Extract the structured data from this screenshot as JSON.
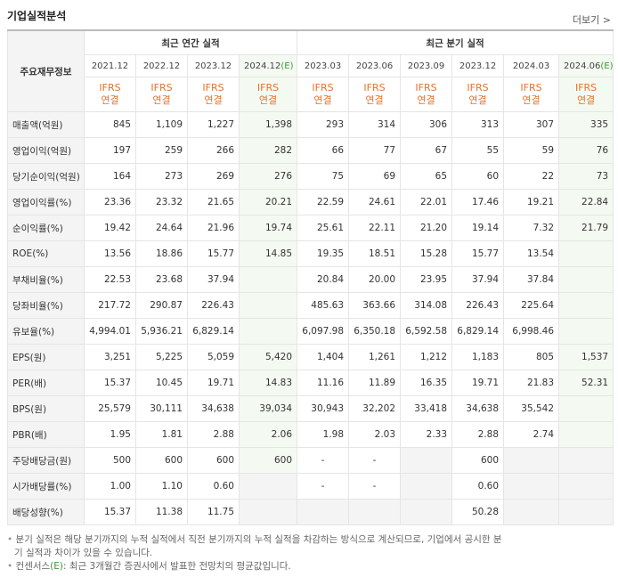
{
  "header": {
    "title": "기업실적분석",
    "more": "더보기"
  },
  "table": {
    "corner": "주요재무정보",
    "groups": [
      "최근 연간 실적",
      "최근 분기 실적"
    ],
    "periods": [
      {
        "date": "2021.12",
        "std": "IFRS",
        "basis": "연결"
      },
      {
        "date": "2022.12",
        "std": "IFRS",
        "basis": "연결"
      },
      {
        "date": "2023.12",
        "std": "IFRS",
        "basis": "연결"
      },
      {
        "date": "2024.12",
        "estimate": "(E)",
        "std": "IFRS",
        "basis": "연결"
      },
      {
        "date": "2023.03",
        "std": "IFRS",
        "basis": "연결"
      },
      {
        "date": "2023.06",
        "std": "IFRS",
        "basis": "연결"
      },
      {
        "date": "2023.09",
        "std": "IFRS",
        "basis": "연결"
      },
      {
        "date": "2023.12",
        "std": "IFRS",
        "basis": "연결"
      },
      {
        "date": "2024.03",
        "std": "IFRS",
        "basis": "연결"
      },
      {
        "date": "2024.06",
        "estimate": "(E)",
        "std": "IFRS",
        "basis": "연결"
      }
    ],
    "row_groups": [
      [
        {
          "label": "매출액(억원)",
          "values": [
            "845",
            "1,109",
            "1,227",
            "1,398",
            "293",
            "314",
            "306",
            "313",
            "307",
            "335"
          ]
        },
        {
          "label": "영업이익(억원)",
          "values": [
            "197",
            "259",
            "266",
            "282",
            "66",
            "77",
            "67",
            "55",
            "59",
            "76"
          ]
        },
        {
          "label": "당기순이익(억원)",
          "values": [
            "164",
            "273",
            "269",
            "276",
            "75",
            "69",
            "65",
            "60",
            "22",
            "73"
          ]
        }
      ],
      [
        {
          "label": "영업이익률(%)",
          "values": [
            "23.36",
            "23.32",
            "21.65",
            "20.21",
            "22.59",
            "24.61",
            "22.01",
            "17.46",
            "19.21",
            "22.84"
          ]
        },
        {
          "label": "순이익률(%)",
          "values": [
            "19.42",
            "24.64",
            "21.96",
            "19.74",
            "25.61",
            "22.11",
            "21.20",
            "19.14",
            "7.32",
            "21.79"
          ]
        },
        {
          "label": "ROE(%)",
          "values": [
            "13.56",
            "18.86",
            "15.77",
            "14.85",
            "19.35",
            "18.51",
            "15.28",
            "15.77",
            "13.54",
            null
          ]
        }
      ],
      [
        {
          "label": "부채비율(%)",
          "values": [
            "22.53",
            "23.68",
            "37.94",
            null,
            "20.84",
            "20.00",
            "23.95",
            "37.94",
            "37.84",
            null
          ]
        },
        {
          "label": "당좌비율(%)",
          "values": [
            "217.72",
            "290.87",
            "226.43",
            null,
            "485.63",
            "363.66",
            "314.08",
            "226.43",
            "225.64",
            null
          ]
        },
        {
          "label": "유보율(%)",
          "values": [
            "4,994.01",
            "5,936.21",
            "6,829.14",
            null,
            "6,097.98",
            "6,350.18",
            "6,592.58",
            "6,829.14",
            "6,998.46",
            null
          ]
        }
      ],
      [
        {
          "label": "EPS(원)",
          "values": [
            "3,251",
            "5,225",
            "5,059",
            "5,420",
            "1,404",
            "1,261",
            "1,212",
            "1,183",
            "805",
            "1,537"
          ]
        },
        {
          "label": "PER(배)",
          "values": [
            "15.37",
            "10.45",
            "19.71",
            "14.83",
            "11.16",
            "11.89",
            "16.35",
            "19.71",
            "21.83",
            "52.31"
          ]
        },
        {
          "label": "BPS(원)",
          "values": [
            "25,579",
            "30,111",
            "34,638",
            "39,034",
            "30,943",
            "32,202",
            "33,418",
            "34,638",
            "35,542",
            null
          ]
        },
        {
          "label": "PBR(배)",
          "values": [
            "1.95",
            "1.81",
            "2.88",
            "2.06",
            "1.98",
            "2.03",
            "2.33",
            "2.88",
            "2.74",
            null
          ]
        }
      ],
      [
        {
          "label": "주당배당금(원)",
          "values": [
            "500",
            "600",
            "600",
            "600",
            "-",
            "-",
            null,
            "600",
            null,
            null
          ]
        },
        {
          "label": "시가배당률(%)",
          "values": [
            "1.00",
            "1.10",
            "0.60",
            null,
            "-",
            "-",
            null,
            "0.60",
            null,
            null
          ]
        },
        {
          "label": "배당성향(%)",
          "values": [
            "15.37",
            "11.38",
            "11.75",
            null,
            null,
            null,
            null,
            "50.28",
            null,
            null
          ]
        }
      ]
    ]
  },
  "notes": [
    {
      "text": "분기 실적은 해당 분기까지의 누적 실적에서 직전 분기까지의 누적 실적을 차감하는 방식으로 계산되므로, 기업에서 공시한 분기 실적과 차이가 있을 수 있습니다."
    },
    {
      "prefix": "컨센서스",
      "mark": "(E)",
      "text": ": 최근 3개월간 증권사에서 발표한 전망치의 평균값입니다."
    }
  ]
}
